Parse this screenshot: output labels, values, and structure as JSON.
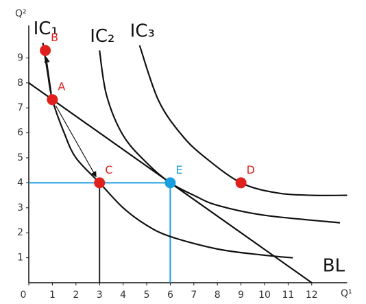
{
  "chart_data": {
    "type": "line",
    "x_label": "Q¹",
    "y_label": "Q²",
    "xlim": [
      0,
      13.5
    ],
    "ylim": [
      0,
      10.3
    ],
    "xticks": [
      0,
      1,
      2,
      3,
      4,
      5,
      6,
      7,
      8,
      9,
      10,
      11,
      12
    ],
    "yticks": [
      1,
      2,
      3,
      4,
      5,
      6,
      7,
      8,
      9
    ],
    "grid": false,
    "series": [
      {
        "name": "IC₁",
        "color": "#111111",
        "x": [
          0.6,
          0.8,
          1,
          1.5,
          2,
          3,
          4,
          5,
          6,
          8,
          10,
          11.2
        ],
        "values": [
          9.6,
          8.4,
          7.33,
          6.0,
          5.0,
          4.0,
          3.0,
          2.3,
          1.85,
          1.35,
          1.1,
          1.0
        ]
      },
      {
        "name": "IC₂",
        "color": "#111111",
        "x": [
          3,
          3.3,
          4,
          5,
          6,
          7,
          8,
          10,
          13.2
        ],
        "values": [
          9.3,
          7.5,
          5.9,
          4.8,
          4.0,
          3.5,
          3.1,
          2.7,
          2.4
        ]
      },
      {
        "name": "IC₃",
        "color": "#111111",
        "x": [
          4.7,
          5.5,
          6.5,
          7.5,
          9,
          10.5,
          12,
          13.5
        ],
        "values": [
          9.5,
          7.3,
          5.9,
          5.0,
          4.0,
          3.6,
          3.5,
          3.5
        ]
      },
      {
        "name": "BL",
        "color": "#111111",
        "x": [
          0,
          12
        ],
        "values": [
          8,
          0
        ]
      }
    ],
    "points": [
      {
        "name": "A",
        "x": 1,
        "y": 7.33,
        "color": "#e0201c"
      },
      {
        "name": "B",
        "x": 0.7,
        "y": 9.3,
        "color": "#e0201c"
      },
      {
        "name": "C",
        "x": 3,
        "y": 4,
        "color": "#e0201c",
        "guides": "v",
        "guide_color": "#222222"
      },
      {
        "name": "D",
        "x": 9,
        "y": 4,
        "color": "#e0201c"
      },
      {
        "name": "E",
        "x": 6,
        "y": 4,
        "color": "#1a9ee0",
        "guides": "hv",
        "guide_color": "#1a9ee0"
      }
    ],
    "arrows": [
      {
        "from": "A",
        "to": "B"
      },
      {
        "from": "A",
        "to": "C"
      }
    ]
  }
}
